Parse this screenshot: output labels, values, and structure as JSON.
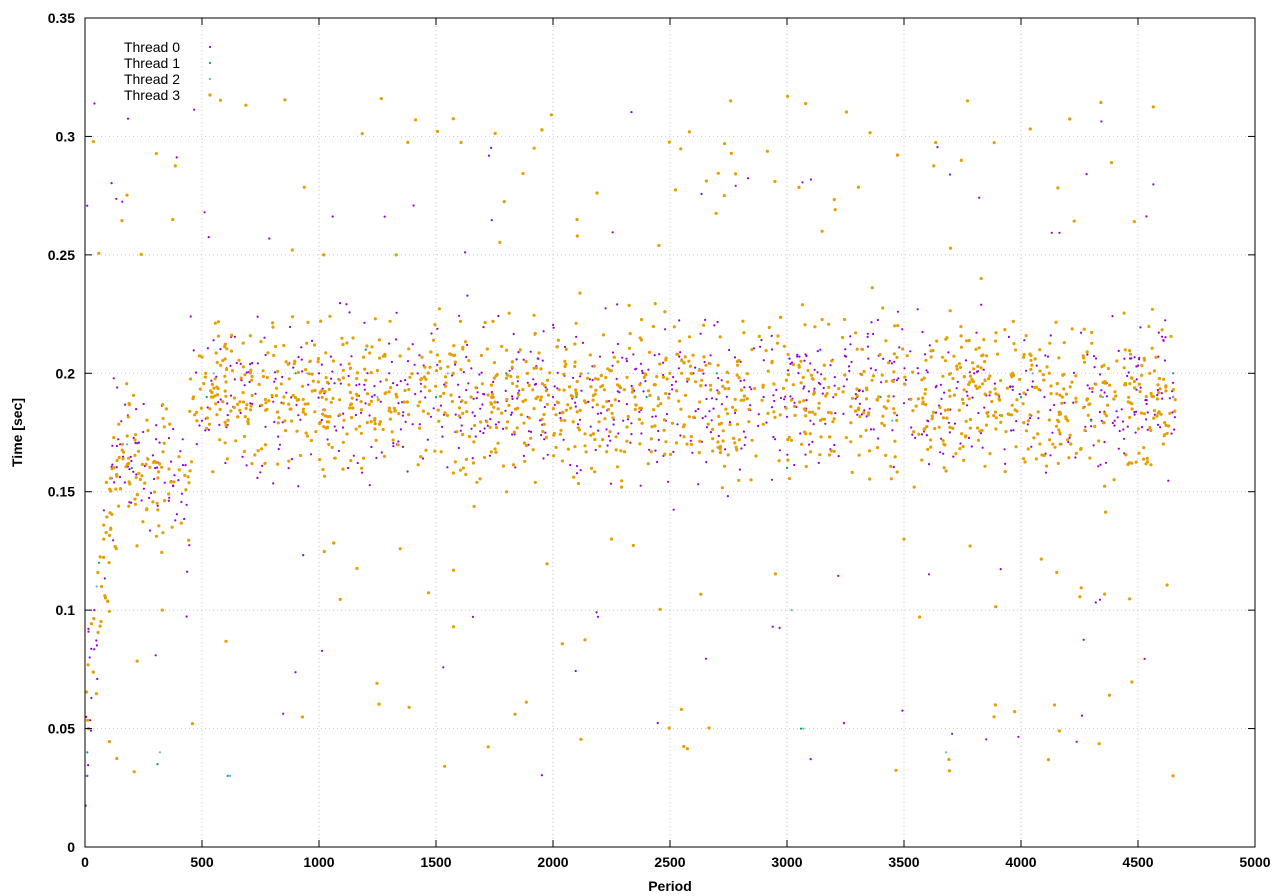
{
  "chart_data": {
    "type": "scatter",
    "xlabel": "Period",
    "ylabel": "Time [sec]",
    "xlim": [
      0,
      5000
    ],
    "ylim": [
      0,
      0.35
    ],
    "x_ticks": [
      0,
      500,
      1000,
      1500,
      2000,
      2500,
      3000,
      3500,
      4000,
      4500,
      5000
    ],
    "x_tick_labels": [
      "0",
      "500",
      "1000",
      "1500",
      "2000",
      "2500",
      "3000",
      "3500",
      "4000",
      "4500",
      "5000"
    ],
    "y_ticks": [
      0,
      0.05,
      0.1,
      0.15,
      0.2,
      0.25,
      0.3,
      0.35
    ],
    "y_tick_labels": [
      "0",
      "0.05",
      "0.1",
      "0.15",
      "0.2",
      "0.25",
      "0.3",
      "0.35"
    ],
    "grid": true,
    "legend_position": "top-left",
    "x_max_data": 4660,
    "series": [
      {
        "name": "Thread 0",
        "color": "#9400d3",
        "points": [
          [
            10,
            0.03
          ],
          [
            40,
            0.1
          ],
          [
            150,
            0.17
          ],
          [
            300,
            0.16
          ],
          [
            500,
            0.18
          ],
          [
            800,
            0.19
          ],
          [
            1000,
            0.2
          ],
          [
            1300,
            0.2
          ],
          [
            1600,
            0.19
          ],
          [
            2000,
            0.19
          ],
          [
            2300,
            0.18
          ],
          [
            2600,
            0.2
          ],
          [
            2900,
            0.19
          ],
          [
            3100,
            0.18
          ],
          [
            3300,
            0.19
          ],
          [
            3600,
            0.18
          ],
          [
            3800,
            0.2
          ],
          [
            4100,
            0.19
          ],
          [
            4400,
            0.18
          ],
          [
            4650,
            0.19
          ]
        ]
      },
      {
        "name": "Thread 1",
        "color": "#009e73",
        "points": [
          [
            10,
            0.04
          ],
          [
            60,
            0.12
          ],
          [
            200,
            0.16
          ],
          [
            310,
            0.035
          ],
          [
            520,
            0.19
          ],
          [
            610,
            0.03
          ],
          [
            900,
            0.2
          ],
          [
            1200,
            0.21
          ],
          [
            1500,
            0.19
          ],
          [
            1800,
            0.2
          ],
          [
            2100,
            0.19
          ],
          [
            2400,
            0.19
          ],
          [
            2700,
            0.2
          ],
          [
            3000,
            0.16
          ],
          [
            3060,
            0.05
          ],
          [
            3400,
            0.19
          ],
          [
            3700,
            0.2
          ],
          [
            4000,
            0.19
          ],
          [
            4300,
            0.18
          ],
          [
            4650,
            0.2
          ]
        ]
      },
      {
        "name": "Thread 2",
        "color": "#56b4e9",
        "points": [
          [
            5,
            0.03
          ],
          [
            50,
            0.11
          ],
          [
            180,
            0.17
          ],
          [
            320,
            0.04
          ],
          [
            550,
            0.2
          ],
          [
            620,
            0.03
          ],
          [
            950,
            0.2
          ],
          [
            1250,
            0.19
          ],
          [
            1550,
            0.2
          ],
          [
            1850,
            0.19
          ],
          [
            2150,
            0.2
          ],
          [
            2450,
            0.19
          ],
          [
            2750,
            0.2
          ],
          [
            3020,
            0.1
          ],
          [
            3070,
            0.05
          ],
          [
            3450,
            0.18
          ],
          [
            3680,
            0.04
          ],
          [
            4050,
            0.2
          ],
          [
            4350,
            0.19
          ],
          [
            4650,
            0.19
          ]
        ]
      },
      {
        "name": "Thread 3",
        "color": "#e69f00",
        "points": [
          [
            15,
            0.05
          ],
          [
            80,
            0.13
          ],
          [
            160,
            0.17
          ],
          [
            330,
            0.1
          ],
          [
            540,
            0.19
          ],
          [
            850,
            0.19
          ],
          [
            1020,
            0.25
          ],
          [
            1330,
            0.25
          ],
          [
            1650,
            0.19
          ],
          [
            1950,
            0.19
          ],
          [
            2250,
            0.13
          ],
          [
            2550,
            0.2
          ],
          [
            2850,
            0.21
          ],
          [
            3150,
            0.26
          ],
          [
            3500,
            0.13
          ],
          [
            3830,
            0.24
          ],
          [
            3890,
            0.06
          ],
          [
            4200,
            0.18
          ],
          [
            4550,
            0.2
          ],
          [
            4650,
            0.03
          ]
        ]
      }
    ]
  }
}
